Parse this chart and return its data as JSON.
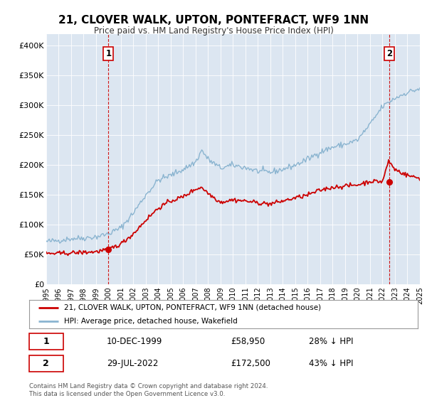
{
  "title": "21, CLOVER WALK, UPTON, PONTEFRACT, WF9 1NN",
  "subtitle": "Price paid vs. HM Land Registry's House Price Index (HPI)",
  "background_color": "#ffffff",
  "plot_bg_color": "#dce6f1",
  "grid_color": "#ffffff",
  "red_color": "#cc0000",
  "blue_color": "#8ab4d0",
  "annotation1_date": 2000.0,
  "annotation1_price": 58950,
  "annotation1_label": "1",
  "annotation2_date": 2022.58,
  "annotation2_price": 172500,
  "annotation2_label": "2",
  "ylim_max": 420000,
  "ytick_values": [
    0,
    50000,
    100000,
    150000,
    200000,
    250000,
    300000,
    350000,
    400000
  ],
  "ytick_labels": [
    "£0",
    "£50K",
    "£100K",
    "£150K",
    "£200K",
    "£250K",
    "£300K",
    "£350K",
    "£400K"
  ],
  "legend_line1": "21, CLOVER WALK, UPTON, PONTEFRACT, WF9 1NN (detached house)",
  "legend_line2": "HPI: Average price, detached house, Wakefield",
  "table_row1_num": "1",
  "table_row1_date": "10-DEC-1999",
  "table_row1_price": "£58,950",
  "table_row1_hpi": "28% ↓ HPI",
  "table_row2_num": "2",
  "table_row2_date": "29-JUL-2022",
  "table_row2_price": "£172,500",
  "table_row2_hpi": "43% ↓ HPI",
  "footer_line1": "Contains HM Land Registry data © Crown copyright and database right 2024.",
  "footer_line2": "This data is licensed under the Open Government Licence v3.0."
}
